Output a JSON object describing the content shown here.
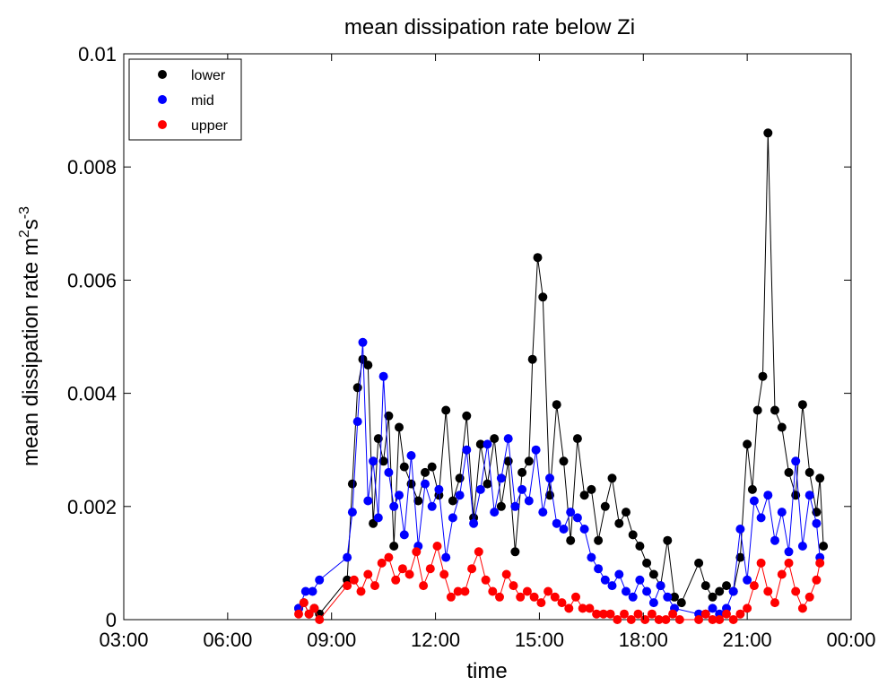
{
  "chart_data": {
    "type": "line",
    "title": "mean dissipation rate below Zi",
    "xlabel": "time",
    "ylabel_main": "mean dissipation rate m",
    "ylabel_sup1": "2",
    "ylabel_mid": "s",
    "ylabel_sup2": "-3",
    "xlim": [
      3,
      24
    ],
    "ylim": [
      0,
      0.01
    ],
    "x_ticks": [
      3,
      6,
      9,
      12,
      15,
      18,
      21,
      24
    ],
    "x_tick_labels": [
      "03:00",
      "06:00",
      "09:00",
      "12:00",
      "15:00",
      "18:00",
      "21:00",
      "00:00"
    ],
    "y_ticks": [
      0,
      0.002,
      0.004,
      0.006,
      0.008,
      0.01
    ],
    "y_tick_labels": [
      "0",
      "0.002",
      "0.004",
      "0.006",
      "0.008",
      "0.01"
    ],
    "legend_position": "top-left",
    "grid": false,
    "series": [
      {
        "name": "lower",
        "color": "#000000",
        "x": [
          8.05,
          8.2,
          8.35,
          8.5,
          8.65,
          9.45,
          9.6,
          9.75,
          9.9,
          10.05,
          10.2,
          10.35,
          10.5,
          10.65,
          10.8,
          10.95,
          11.1,
          11.3,
          11.5,
          11.7,
          11.9,
          12.1,
          12.3,
          12.5,
          12.7,
          12.9,
          13.1,
          13.3,
          13.5,
          13.7,
          13.9,
          14.1,
          14.3,
          14.5,
          14.7,
          14.8,
          14.95,
          15.1,
          15.3,
          15.5,
          15.7,
          15.9,
          16.1,
          16.3,
          16.5,
          16.7,
          16.9,
          17.1,
          17.3,
          17.5,
          17.7,
          17.9,
          18.1,
          18.3,
          18.5,
          18.7,
          18.9,
          19.1,
          19.6,
          19.8,
          20.0,
          20.2,
          20.4,
          20.6,
          20.8,
          21.0,
          21.15,
          21.3,
          21.45,
          21.6,
          21.8,
          22.0,
          22.2,
          22.4,
          22.6,
          22.8,
          23.0,
          23.1,
          23.2
        ],
        "values": [
          0.0002,
          0.0003,
          0.0001,
          0.0002,
          0.0001,
          0.0007,
          0.0024,
          0.0041,
          0.0046,
          0.0045,
          0.0017,
          0.0032,
          0.0028,
          0.0036,
          0.0013,
          0.0034,
          0.0027,
          0.0024,
          0.0021,
          0.0026,
          0.0027,
          0.0022,
          0.0037,
          0.0021,
          0.0025,
          0.0036,
          0.0018,
          0.0031,
          0.0024,
          0.0032,
          0.002,
          0.0028,
          0.0012,
          0.0026,
          0.0028,
          0.0046,
          0.0064,
          0.0057,
          0.0022,
          0.0038,
          0.0028,
          0.0014,
          0.0032,
          0.0022,
          0.0023,
          0.0014,
          0.002,
          0.0025,
          0.0017,
          0.0019,
          0.0015,
          0.0013,
          0.001,
          0.0008,
          0.0006,
          0.0014,
          0.0004,
          0.0003,
          0.001,
          0.0006,
          0.0004,
          0.0005,
          0.0006,
          0.0005,
          0.0011,
          0.0031,
          0.0023,
          0.0037,
          0.0043,
          0.0086,
          0.0037,
          0.0034,
          0.0026,
          0.0022,
          0.0038,
          0.0026,
          0.0019,
          0.0025,
          0.0013
        ]
      },
      {
        "name": "mid",
        "color": "#0000ff",
        "x": [
          8.05,
          8.25,
          8.45,
          8.65,
          9.45,
          9.6,
          9.75,
          9.9,
          10.05,
          10.2,
          10.35,
          10.5,
          10.65,
          10.8,
          10.95,
          11.1,
          11.3,
          11.5,
          11.7,
          11.9,
          12.1,
          12.3,
          12.5,
          12.7,
          12.9,
          13.1,
          13.3,
          13.5,
          13.7,
          13.9,
          14.1,
          14.3,
          14.5,
          14.7,
          14.9,
          15.1,
          15.3,
          15.5,
          15.7,
          15.9,
          16.1,
          16.3,
          16.5,
          16.7,
          16.9,
          17.1,
          17.3,
          17.5,
          17.7,
          17.9,
          18.1,
          18.3,
          18.5,
          18.7,
          18.9,
          19.6,
          19.8,
          20.0,
          20.2,
          20.4,
          20.6,
          20.8,
          21.0,
          21.2,
          21.4,
          21.6,
          21.8,
          22.0,
          22.2,
          22.4,
          22.6,
          22.8,
          23.0,
          23.1
        ],
        "values": [
          0.0002,
          0.0005,
          0.0005,
          0.0007,
          0.0011,
          0.0019,
          0.0035,
          0.0049,
          0.0021,
          0.0028,
          0.0018,
          0.0043,
          0.0026,
          0.002,
          0.0022,
          0.0015,
          0.0029,
          0.0013,
          0.0024,
          0.002,
          0.0023,
          0.0011,
          0.0018,
          0.0022,
          0.003,
          0.0017,
          0.0023,
          0.0031,
          0.0019,
          0.0025,
          0.0032,
          0.002,
          0.0023,
          0.0021,
          0.003,
          0.0019,
          0.0025,
          0.0017,
          0.0016,
          0.0019,
          0.0018,
          0.0016,
          0.0011,
          0.0009,
          0.0007,
          0.0006,
          0.0008,
          0.0005,
          0.0004,
          0.0007,
          0.0005,
          0.0003,
          0.0006,
          0.0004,
          0.0002,
          0.0001,
          0.0001,
          0.0002,
          0.0001,
          0.0002,
          0.0005,
          0.0016,
          0.0007,
          0.0021,
          0.0018,
          0.0022,
          0.0014,
          0.0019,
          0.0012,
          0.0028,
          0.0013,
          0.0022,
          0.0017,
          0.0011
        ]
      },
      {
        "name": "upper",
        "color": "#ff0000",
        "x": [
          8.05,
          8.2,
          8.35,
          8.5,
          8.65,
          9.45,
          9.65,
          9.85,
          10.05,
          10.25,
          10.45,
          10.65,
          10.85,
          11.05,
          11.25,
          11.45,
          11.65,
          11.85,
          12.05,
          12.25,
          12.45,
          12.65,
          12.85,
          13.05,
          13.25,
          13.45,
          13.65,
          13.85,
          14.05,
          14.25,
          14.45,
          14.65,
          14.85,
          15.05,
          15.25,
          15.45,
          15.65,
          15.85,
          16.05,
          16.25,
          16.45,
          16.65,
          16.85,
          17.05,
          17.25,
          17.45,
          17.65,
          17.85,
          18.05,
          18.25,
          18.45,
          18.65,
          18.85,
          19.05,
          19.6,
          19.8,
          20.0,
          20.2,
          20.4,
          20.6,
          20.8,
          21.0,
          21.2,
          21.4,
          21.6,
          21.8,
          22.0,
          22.2,
          22.4,
          22.6,
          22.8,
          23.0,
          23.1
        ],
        "values": [
          0.0001,
          0.0003,
          0.0001,
          0.0002,
          0.0,
          0.0006,
          0.0007,
          0.0005,
          0.0008,
          0.0006,
          0.001,
          0.0011,
          0.0007,
          0.0009,
          0.0008,
          0.0012,
          0.0006,
          0.0009,
          0.0013,
          0.0008,
          0.0004,
          0.0005,
          0.0005,
          0.0009,
          0.0012,
          0.0007,
          0.0005,
          0.0004,
          0.0008,
          0.0006,
          0.0004,
          0.0005,
          0.0004,
          0.0003,
          0.0005,
          0.0004,
          0.0003,
          0.0002,
          0.0004,
          0.0002,
          0.0002,
          0.0001,
          0.0001,
          0.0001,
          0.0,
          0.0001,
          0.0,
          0.0001,
          0.0,
          0.0001,
          0.0,
          0.0,
          0.0001,
          0.0,
          0.0,
          0.0001,
          0.0,
          0.0,
          0.0001,
          0.0,
          0.0001,
          0.0002,
          0.0006,
          0.001,
          0.0005,
          0.0003,
          0.0008,
          0.001,
          0.0005,
          0.0002,
          0.0004,
          0.0007,
          0.001
        ]
      }
    ]
  }
}
